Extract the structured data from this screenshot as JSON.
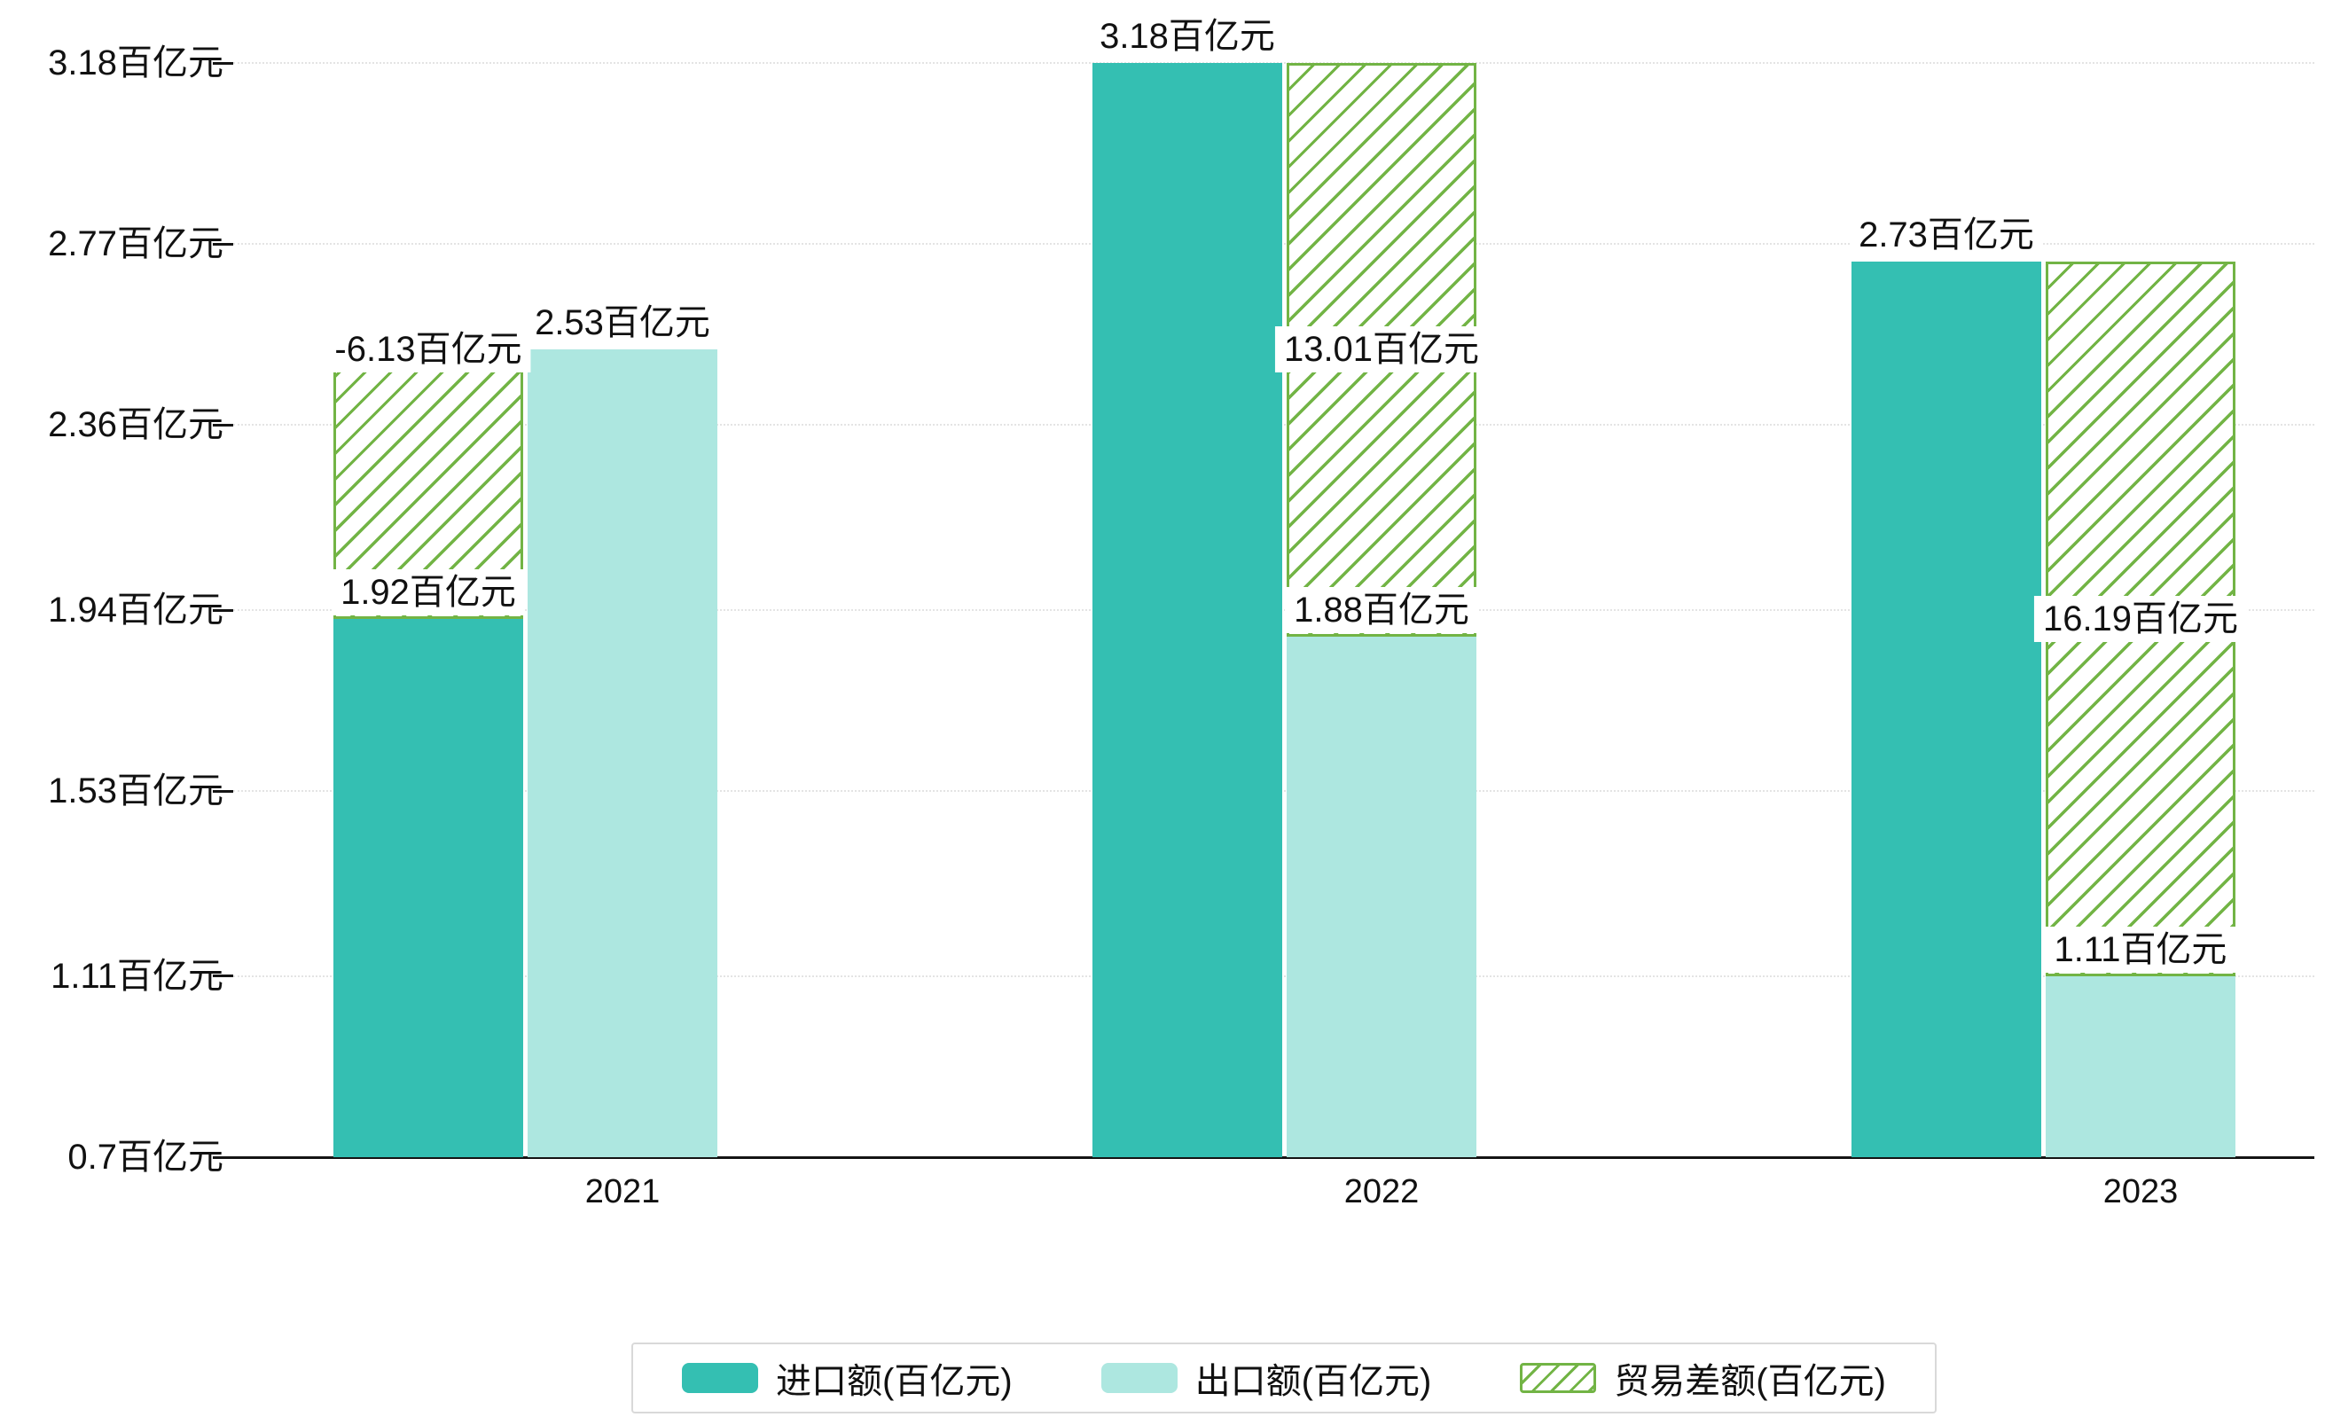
{
  "chart_data": {
    "type": "bar",
    "title": "",
    "categories": [
      "2021",
      "2022",
      "2023"
    ],
    "series": [
      {
        "name": "进口额(百亿元)",
        "type": "bar",
        "color": "#34bfb2",
        "values": [
          1.92,
          3.18,
          2.73
        ],
        "labels": [
          "1.92百亿元",
          "3.18百亿元",
          "2.73百亿元"
        ]
      },
      {
        "name": "出口额(百亿元)",
        "type": "bar",
        "color": "#ade7e0",
        "values": [
          2.53,
          1.88,
          1.11
        ],
        "labels": [
          "2.53百亿元",
          "1.88百亿元",
          "1.11百亿元"
        ]
      },
      {
        "name": "贸易差额(百亿元)",
        "type": "bar",
        "style": "hatched-outline-floating-between-import-and-export-tops",
        "color": "#72b445",
        "values": [
          -6.13,
          13.01,
          16.19
        ],
        "labels": [
          "-6.13百亿元",
          "13.01百亿元",
          "16.19百亿元"
        ]
      }
    ],
    "y_axis": {
      "min": 0.7,
      "max": 3.18,
      "ticks": [
        0.7,
        1.11,
        1.53,
        1.94,
        2.36,
        2.77,
        3.18
      ],
      "tick_labels": [
        "0.7百亿元",
        "1.11百亿元",
        "1.53百亿元",
        "1.94百亿元",
        "2.36百亿元",
        "2.77百亿元",
        "3.18百亿元"
      ]
    },
    "legend": [
      "进口额(百亿元)",
      "出口额(百亿元)",
      "贸易差额(百亿元)"
    ],
    "legend_position": "bottom",
    "grid": "dotted-horizontal"
  },
  "colors": {
    "import": "#34bfb2",
    "export": "#ade7e0",
    "balance": "#72b445",
    "axis": "#141414",
    "gridline": "#e4e4e4",
    "label_background": "#ffffff",
    "legend_border": "#d9d9d9"
  }
}
